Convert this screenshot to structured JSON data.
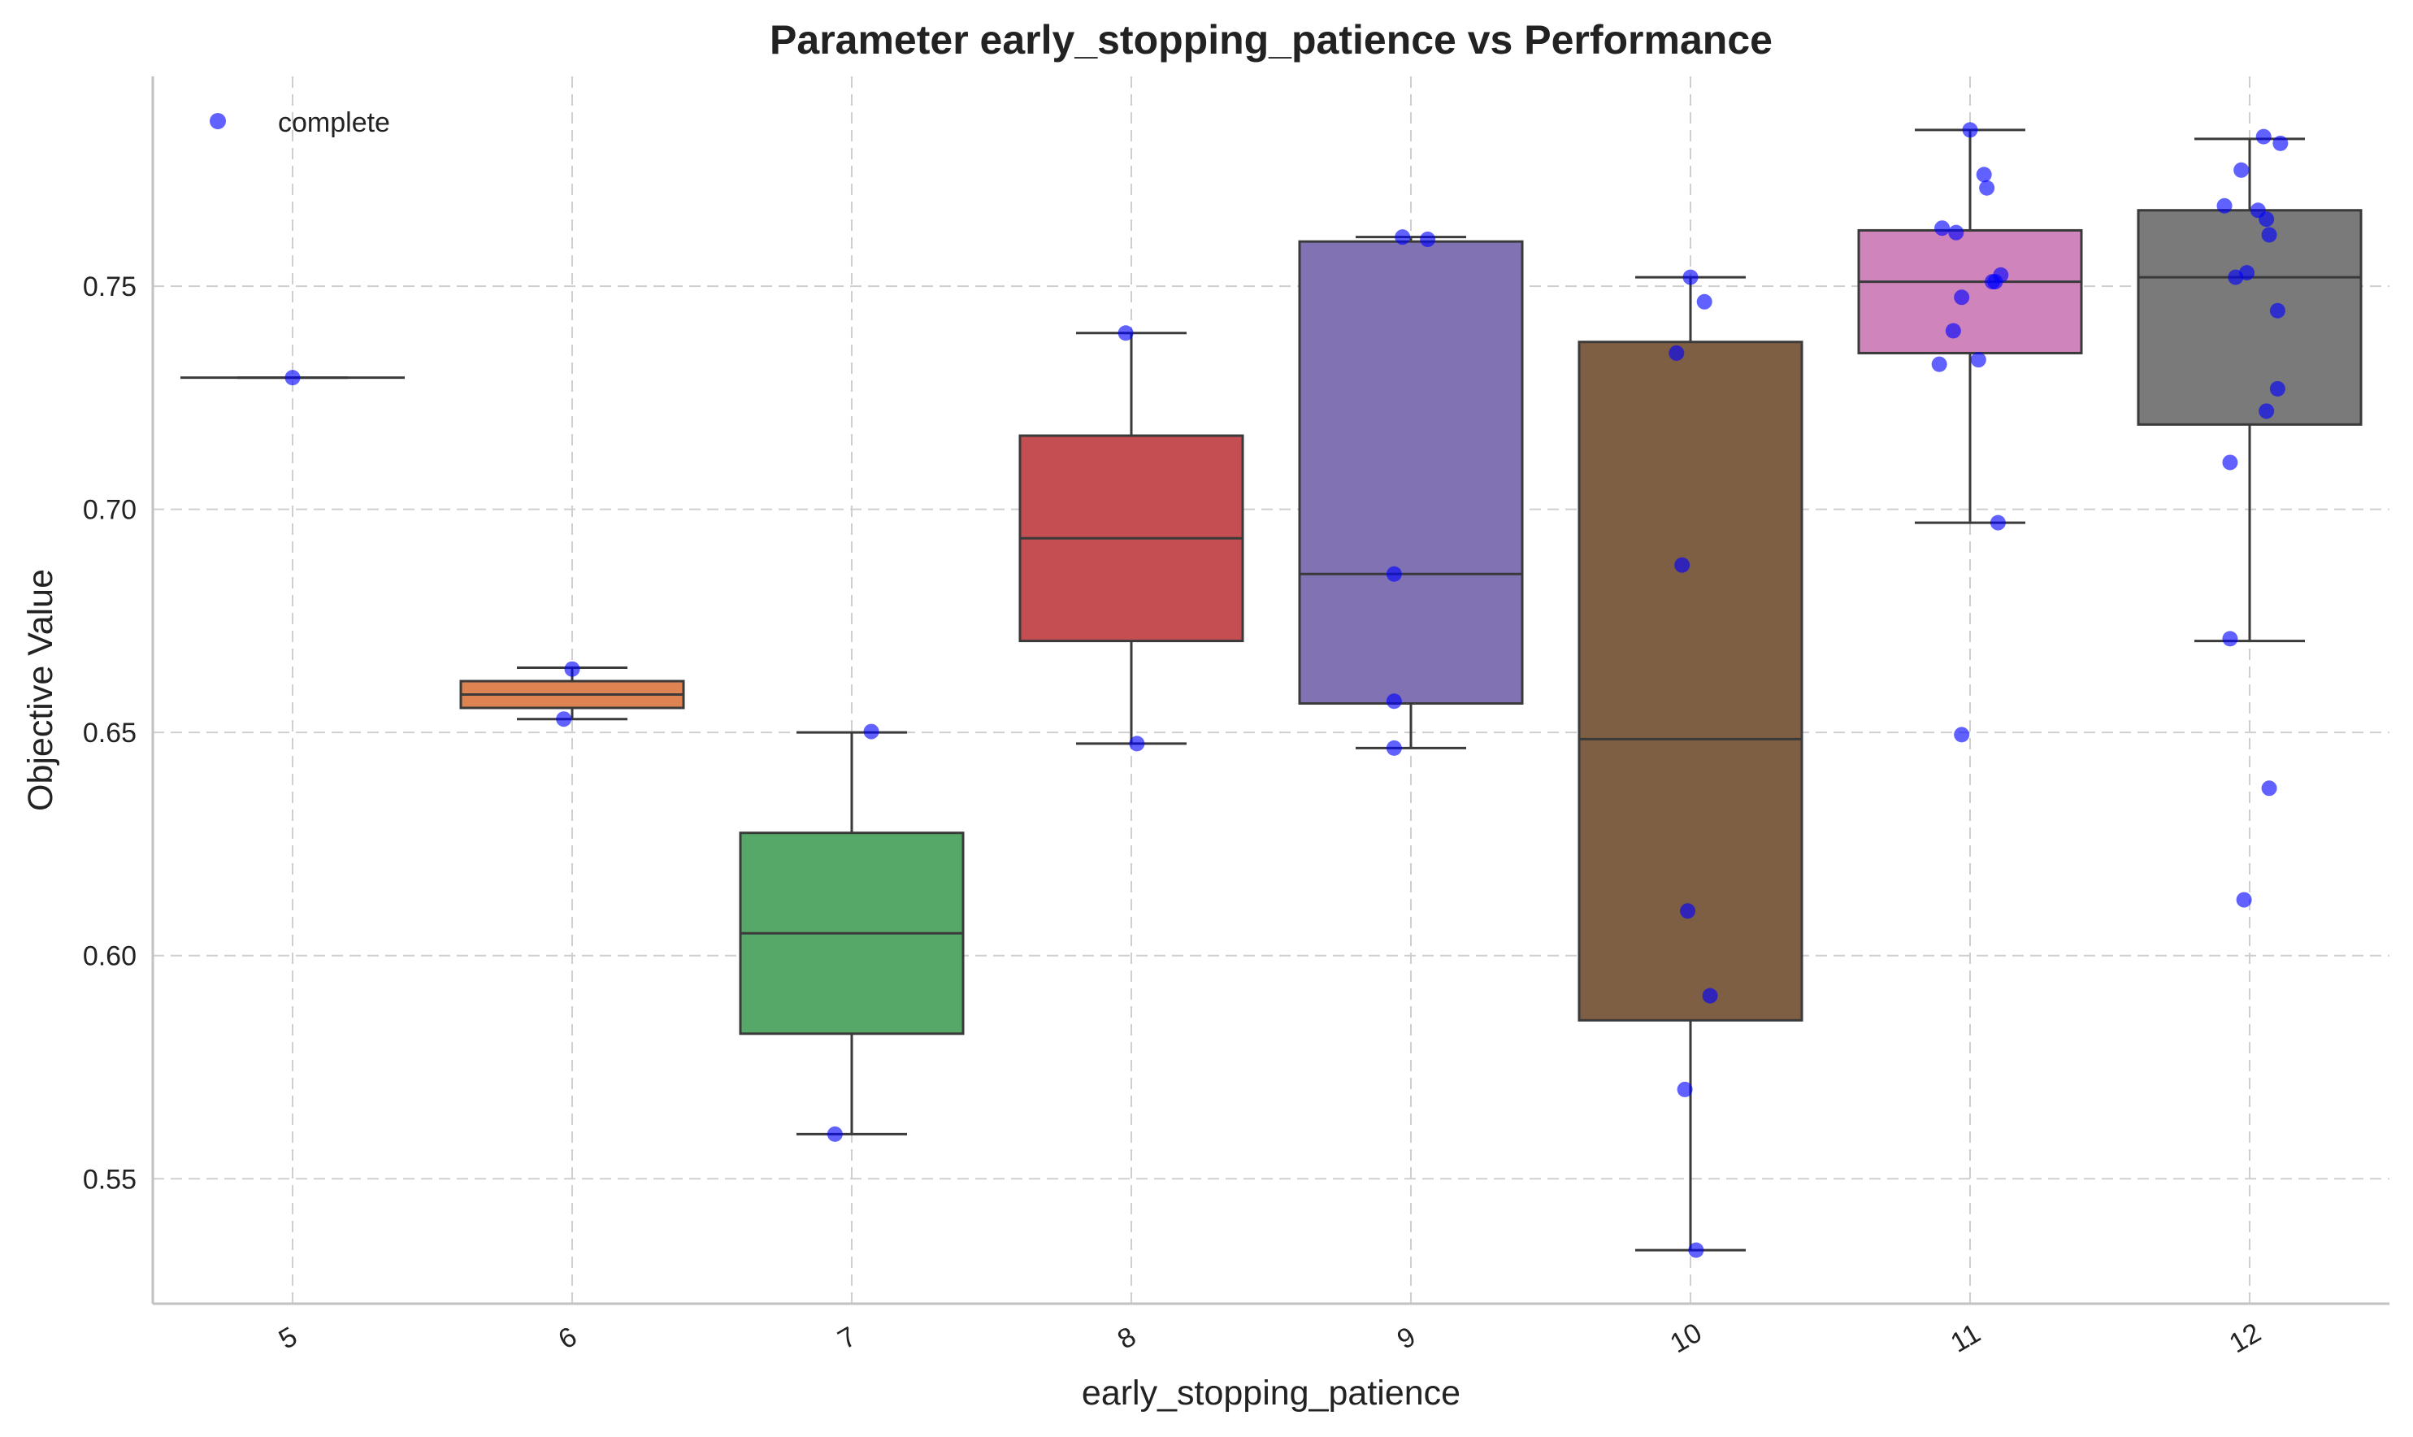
{
  "chart_data": {
    "type": "box",
    "title": "Parameter early_stopping_patience vs Performance",
    "xlabel": "early_stopping_patience",
    "ylabel": "Objective Value",
    "ylim": [
      0.522,
      0.797
    ],
    "yticks": [
      0.55,
      0.6,
      0.65,
      0.7,
      0.75
    ],
    "ytick_labels": [
      "0.55",
      "0.60",
      "0.65",
      "0.70",
      "0.75"
    ],
    "categories": [
      "5",
      "6",
      "7",
      "8",
      "9",
      "10",
      "11",
      "12"
    ],
    "legend": {
      "label": "complete",
      "position": "top-left",
      "color": "#0000ff"
    },
    "grid": true,
    "boxes": [
      {
        "category": "5",
        "color": "#4c72b0",
        "whisker_low": 0.7295,
        "q1": 0.7295,
        "median": 0.7295,
        "q3": 0.7295,
        "whisker_high": 0.7295
      },
      {
        "category": "6",
        "color": "#dd8452",
        "whisker_low": 0.653,
        "q1": 0.6555,
        "median": 0.6585,
        "q3": 0.6615,
        "whisker_high": 0.6645
      },
      {
        "category": "7",
        "color": "#55a868",
        "whisker_low": 0.56,
        "q1": 0.5825,
        "median": 0.605,
        "q3": 0.6275,
        "whisker_high": 0.65
      },
      {
        "category": "8",
        "color": "#c44e52",
        "whisker_low": 0.6475,
        "q1": 0.6705,
        "median": 0.6935,
        "q3": 0.7165,
        "whisker_high": 0.7395
      },
      {
        "category": "9",
        "color": "#8172b3",
        "whisker_low": 0.6465,
        "q1": 0.6565,
        "median": 0.6855,
        "q3": 0.76,
        "whisker_high": 0.761
      },
      {
        "category": "10",
        "color": "#7f5f44",
        "whisker_low": 0.534,
        "q1": 0.5855,
        "median": 0.6485,
        "q3": 0.7375,
        "whisker_high": 0.752
      },
      {
        "category": "11",
        "color": "#cf85bb",
        "whisker_low": 0.697,
        "q1": 0.735,
        "median": 0.751,
        "q3": 0.7625,
        "whisker_high": 0.785
      },
      {
        "category": "12",
        "color": "#7a7a7a",
        "whisker_low": 0.6705,
        "q1": 0.719,
        "median": 0.752,
        "q3": 0.767,
        "whisker_high": 0.783
      }
    ],
    "points": [
      {
        "category": "5",
        "jitter": 0.0,
        "value": 0.7295
      },
      {
        "category": "6",
        "jitter": 0.0,
        "value": 0.6642
      },
      {
        "category": "6",
        "jitter": -0.03,
        "value": 0.653
      },
      {
        "category": "7",
        "jitter": 0.07,
        "value": 0.6502
      },
      {
        "category": "7",
        "jitter": -0.06,
        "value": 0.56
      },
      {
        "category": "8",
        "jitter": -0.02,
        "value": 0.7395
      },
      {
        "category": "8",
        "jitter": 0.02,
        "value": 0.6475
      },
      {
        "category": "9",
        "jitter": -0.03,
        "value": 0.761
      },
      {
        "category": "9",
        "jitter": 0.06,
        "value": 0.7605
      },
      {
        "category": "9",
        "jitter": -0.06,
        "value": 0.6855
      },
      {
        "category": "9",
        "jitter": -0.06,
        "value": 0.657
      },
      {
        "category": "9",
        "jitter": -0.06,
        "value": 0.6465
      },
      {
        "category": "10",
        "jitter": 0.0,
        "value": 0.752
      },
      {
        "category": "10",
        "jitter": 0.05,
        "value": 0.7465
      },
      {
        "category": "10",
        "jitter": -0.05,
        "value": 0.735
      },
      {
        "category": "10",
        "jitter": -0.03,
        "value": 0.6875
      },
      {
        "category": "10",
        "jitter": -0.01,
        "value": 0.61
      },
      {
        "category": "10",
        "jitter": 0.07,
        "value": 0.591
      },
      {
        "category": "10",
        "jitter": -0.02,
        "value": 0.57
      },
      {
        "category": "10",
        "jitter": 0.02,
        "value": 0.534
      },
      {
        "category": "11",
        "jitter": 0.0,
        "value": 0.785
      },
      {
        "category": "11",
        "jitter": 0.05,
        "value": 0.775
      },
      {
        "category": "11",
        "jitter": 0.06,
        "value": 0.772
      },
      {
        "category": "11",
        "jitter": -0.1,
        "value": 0.763
      },
      {
        "category": "11",
        "jitter": -0.05,
        "value": 0.762
      },
      {
        "category": "11",
        "jitter": 0.11,
        "value": 0.7525
      },
      {
        "category": "11",
        "jitter": 0.09,
        "value": 0.751
      },
      {
        "category": "11",
        "jitter": 0.08,
        "value": 0.751
      },
      {
        "category": "11",
        "jitter": -0.03,
        "value": 0.7475
      },
      {
        "category": "11",
        "jitter": -0.06,
        "value": 0.74
      },
      {
        "category": "11",
        "jitter": 0.03,
        "value": 0.7335
      },
      {
        "category": "11",
        "jitter": -0.11,
        "value": 0.7325
      },
      {
        "category": "11",
        "jitter": 0.1,
        "value": 0.697
      },
      {
        "category": "11",
        "jitter": -0.03,
        "value": 0.6495
      },
      {
        "category": "12",
        "jitter": 0.05,
        "value": 0.7835
      },
      {
        "category": "12",
        "jitter": 0.11,
        "value": 0.782
      },
      {
        "category": "12",
        "jitter": -0.03,
        "value": 0.776
      },
      {
        "category": "12",
        "jitter": -0.09,
        "value": 0.768
      },
      {
        "category": "12",
        "jitter": 0.03,
        "value": 0.767
      },
      {
        "category": "12",
        "jitter": 0.06,
        "value": 0.765
      },
      {
        "category": "12",
        "jitter": 0.07,
        "value": 0.7615
      },
      {
        "category": "12",
        "jitter": -0.05,
        "value": 0.752
      },
      {
        "category": "12",
        "jitter": -0.01,
        "value": 0.753
      },
      {
        "category": "12",
        "jitter": 0.1,
        "value": 0.7445
      },
      {
        "category": "12",
        "jitter": 0.1,
        "value": 0.727
      },
      {
        "category": "12",
        "jitter": 0.06,
        "value": 0.722
      },
      {
        "category": "12",
        "jitter": -0.07,
        "value": 0.7105
      },
      {
        "category": "12",
        "jitter": -0.07,
        "value": 0.671
      },
      {
        "category": "12",
        "jitter": 0.07,
        "value": 0.6375
      },
      {
        "category": "12",
        "jitter": -0.02,
        "value": 0.6125
      }
    ]
  }
}
